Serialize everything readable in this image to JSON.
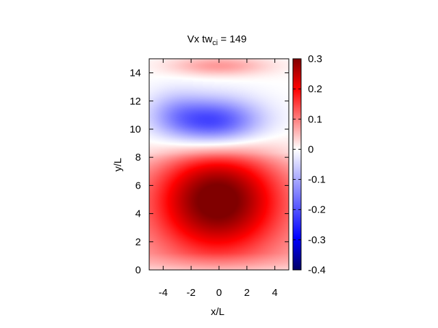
{
  "chart_data": {
    "type": "heatmap",
    "title": {
      "main": "Vx tw",
      "subscript": "ci",
      "suffix": " =  149"
    },
    "xlabel": "x/L",
    "ylabel": "y/L",
    "xlim": [
      -5,
      5
    ],
    "ylim": [
      0,
      15
    ],
    "xticks": [
      "-4",
      "-2",
      "0",
      "2",
      "4"
    ],
    "yticks": [
      "0",
      "2",
      "4",
      "6",
      "8",
      "10",
      "12",
      "14"
    ],
    "colorbar": {
      "range": [
        -0.4,
        0.3
      ],
      "ticks": [
        "0.3",
        "0.2",
        "0.1",
        "0",
        "-0.1",
        "-0.2",
        "-0.3",
        "-0.4"
      ],
      "palette": [
        "#000066",
        "#0000ff",
        "#ffffff",
        "#ff0000",
        "#800000"
      ]
    },
    "field_features": [
      {
        "name": "positive lobe",
        "center": [
          -0.1,
          5.0
        ],
        "peak_value": 0.27
      },
      {
        "name": "negative lobe",
        "center": [
          -0.4,
          10.5
        ],
        "peak_value": -0.24
      },
      {
        "name": "weak positive top band",
        "center": [
          0.0,
          14.5
        ],
        "peak_value": 0.08
      }
    ]
  }
}
